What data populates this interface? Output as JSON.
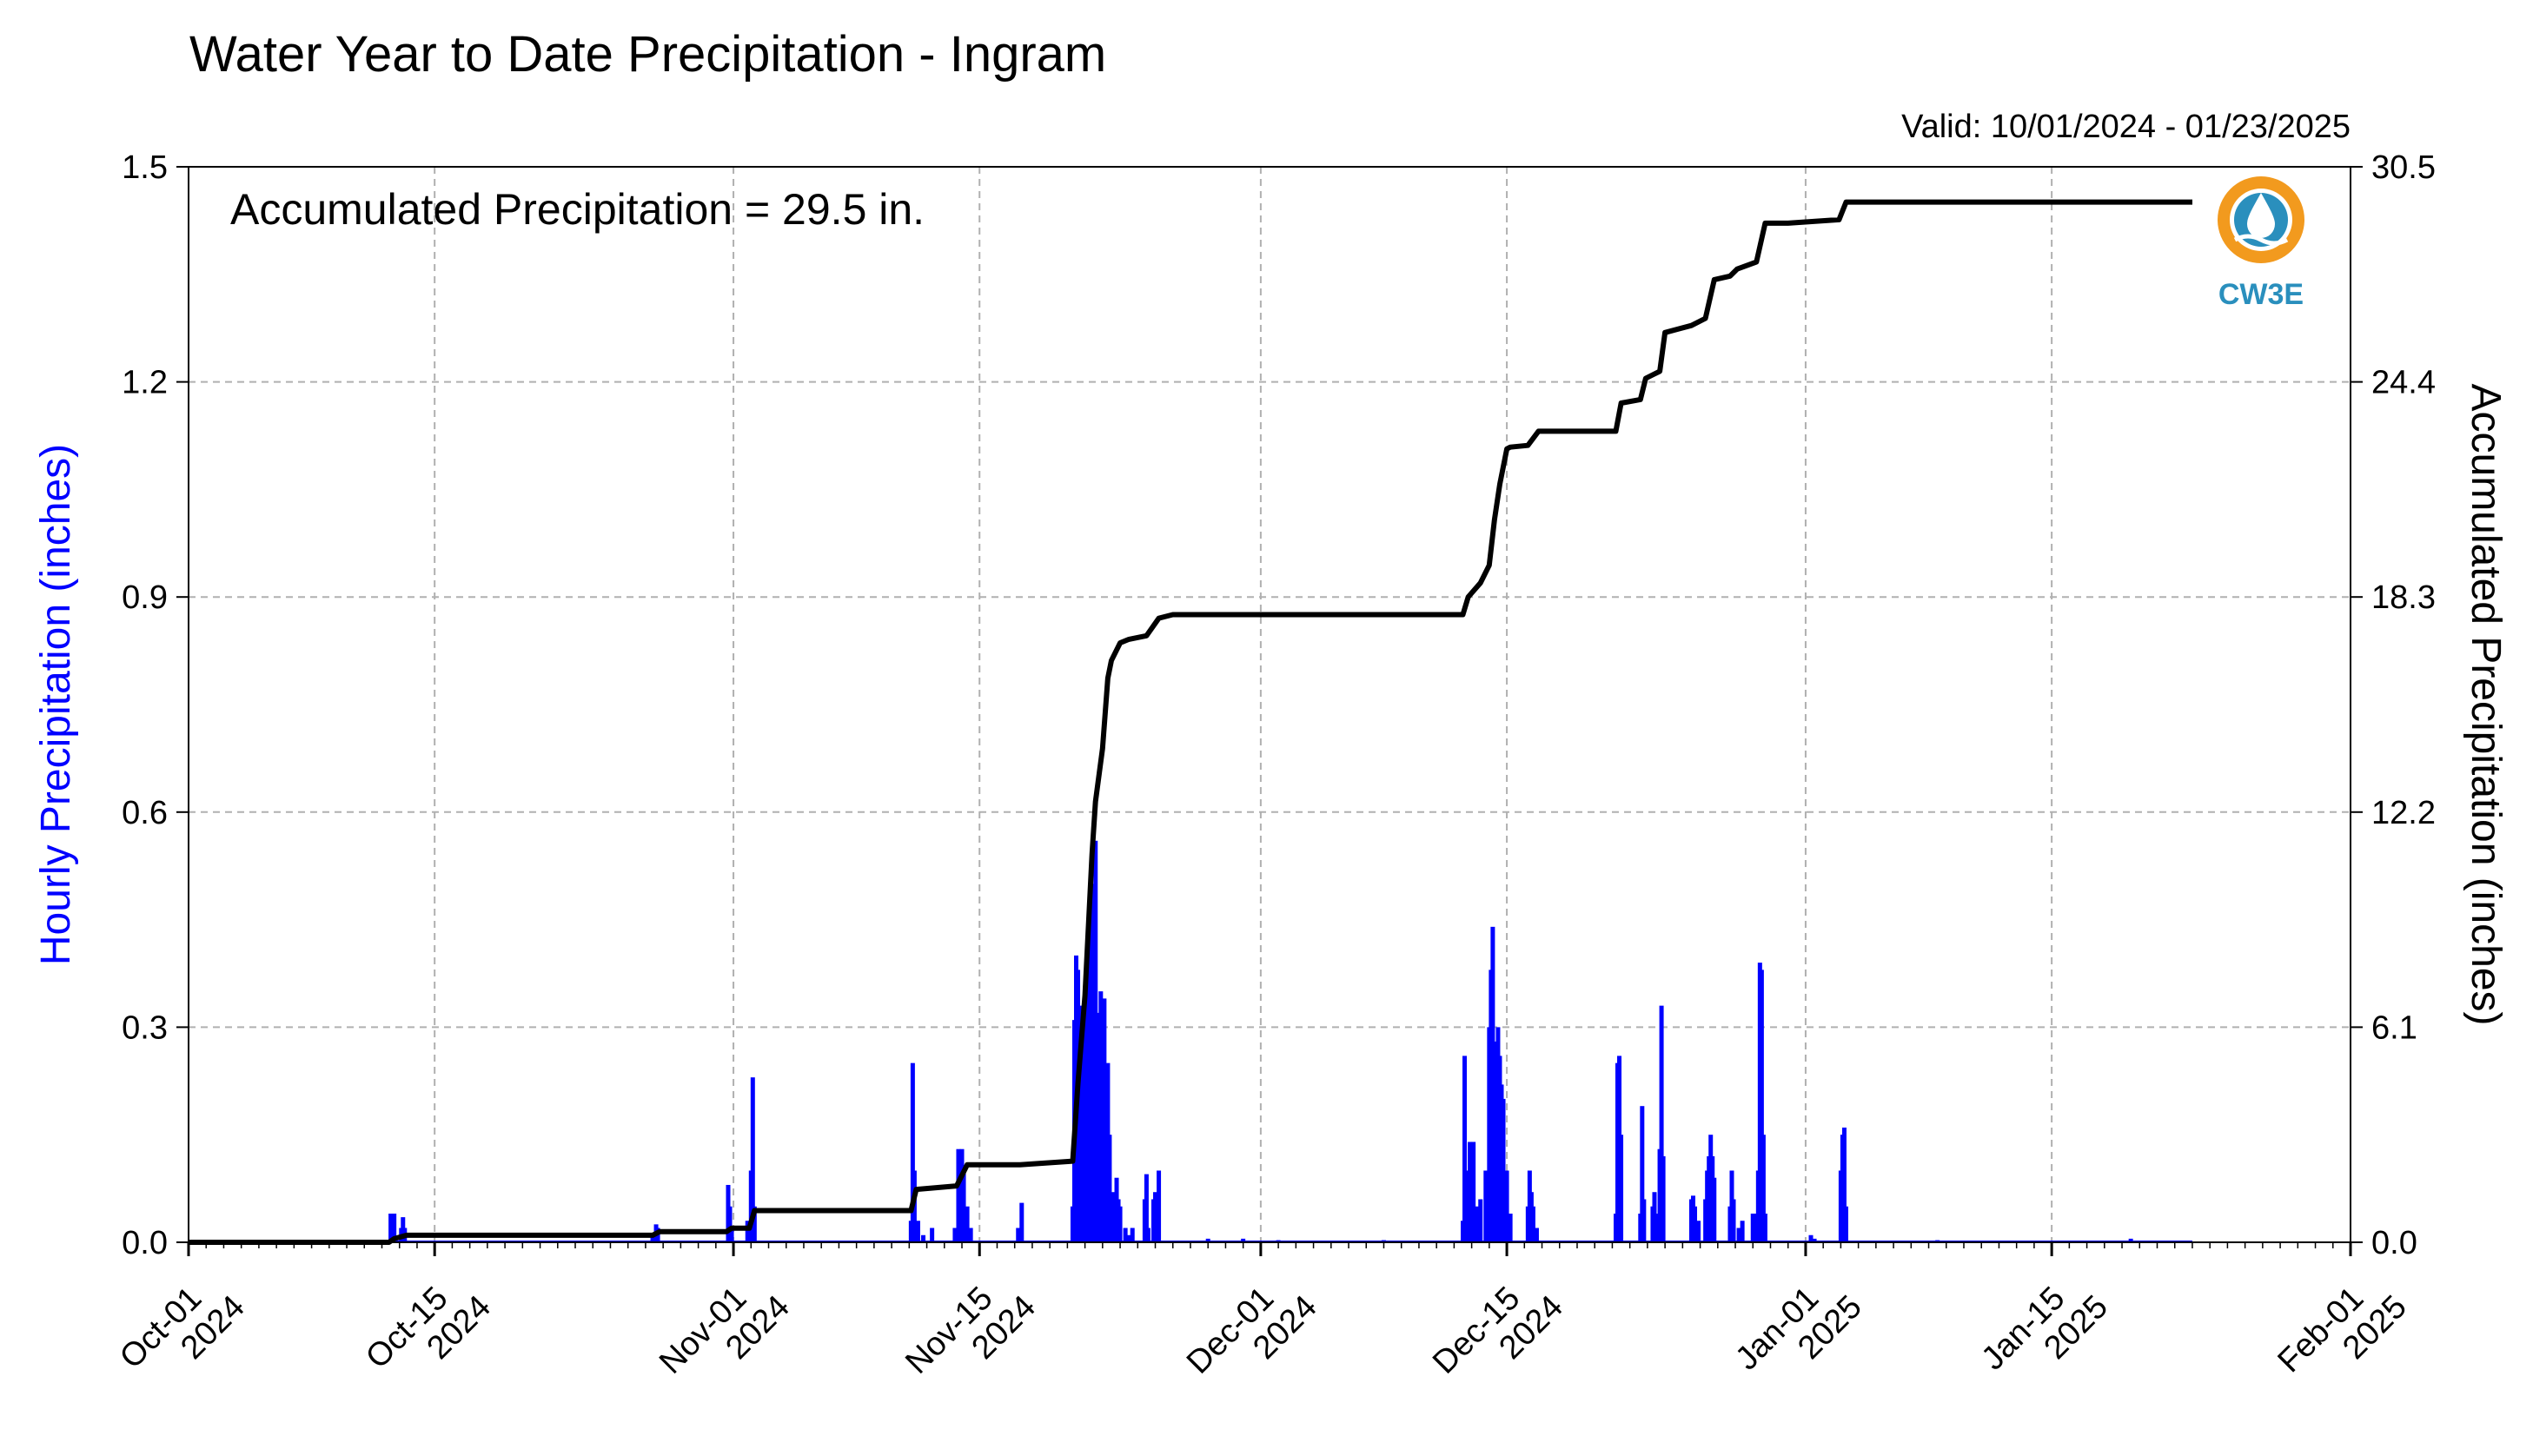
{
  "chart_data": {
    "type": "bar+line",
    "title": "Water Year to Date Precipitation - Ingram",
    "valid_range": "Valid: 10/01/2024 - 01/23/2025",
    "annotation": "Accumulated Precipitation = 29.5 in.",
    "logo_text": "CW3E",
    "ylabel_left": "Hourly Precipitation (inches)",
    "ylabel_right": "Accumulated Precipitation (inches)",
    "ylim_left": [
      0,
      1.5
    ],
    "ylim_right": [
      0,
      30.5
    ],
    "yticks_left": [
      "0.0",
      "0.3",
      "0.6",
      "0.9",
      "1.2",
      "1.5"
    ],
    "yticks_right": [
      "0.0",
      "6.1",
      "12.2",
      "18.3",
      "24.4",
      "30.5"
    ],
    "xlim_days": [
      0,
      123
    ],
    "x_ticks": [
      {
        "day": 0,
        "line1": "Oct-01",
        "line2": "2024"
      },
      {
        "day": 14,
        "line1": "Oct-15",
        "line2": "2024"
      },
      {
        "day": 31,
        "line1": "Nov-01",
        "line2": "2024"
      },
      {
        "day": 45,
        "line1": "Nov-15",
        "line2": "2024"
      },
      {
        "day": 61,
        "line1": "Dec-01",
        "line2": "2024"
      },
      {
        "day": 75,
        "line1": "Dec-15",
        "line2": "2024"
      },
      {
        "day": 92,
        "line1": "Jan-01",
        "line2": "2025"
      },
      {
        "day": 106,
        "line1": "Jan-15",
        "line2": "2025"
      },
      {
        "day": 123,
        "line1": "Feb-01",
        "line2": "2025"
      }
    ],
    "grid": true,
    "colors": {
      "hourly": "#0000ff",
      "accumulated": "#000000",
      "grid": "#b0b0b0",
      "logo": "#2a8fbd",
      "logo_sun": "#f29a1e"
    },
    "series": [
      {
        "name": "Hourly Precipitation",
        "type": "bar",
        "points": [
          [
            11.5,
            0.04
          ],
          [
            11.6,
            0.03
          ],
          [
            11.7,
            0.04
          ],
          [
            12.1,
            0.02
          ],
          [
            12.2,
            0.035
          ],
          [
            12.3,
            0.02
          ],
          [
            26.4,
            0.01
          ],
          [
            26.6,
            0.025
          ],
          [
            26.7,
            0.02
          ],
          [
            30.7,
            0.08
          ],
          [
            30.8,
            0.05
          ],
          [
            30.9,
            0.02
          ],
          [
            31.8,
            0.03
          ],
          [
            32.0,
            0.1
          ],
          [
            32.1,
            0.23
          ],
          [
            32.2,
            0.05
          ],
          [
            41.1,
            0.03
          ],
          [
            41.2,
            0.25
          ],
          [
            41.3,
            0.1
          ],
          [
            41.5,
            0.03
          ],
          [
            41.8,
            0.01
          ],
          [
            42.3,
            0.02
          ],
          [
            43.6,
            0.02
          ],
          [
            43.8,
            0.13
          ],
          [
            43.9,
            0.12
          ],
          [
            44.0,
            0.13
          ],
          [
            44.1,
            0.1
          ],
          [
            44.3,
            0.05
          ],
          [
            44.5,
            0.02
          ],
          [
            47.2,
            0.02
          ],
          [
            47.4,
            0.055
          ],
          [
            50.3,
            0.05
          ],
          [
            50.4,
            0.31
          ],
          [
            50.45,
            0.18
          ],
          [
            50.5,
            0.4
          ],
          [
            50.6,
            0.38
          ],
          [
            50.7,
            0.25
          ],
          [
            50.8,
            0.33
          ],
          [
            50.9,
            0.3
          ],
          [
            51.0,
            0.35
          ],
          [
            51.05,
            0.2
          ],
          [
            51.1,
            0.4
          ],
          [
            51.2,
            0.38
          ],
          [
            51.3,
            0.45
          ],
          [
            51.35,
            0.38
          ],
          [
            51.4,
            0.48
          ],
          [
            51.5,
            0.5
          ],
          [
            51.6,
            0.56
          ],
          [
            51.7,
            0.32
          ],
          [
            51.8,
            0.2
          ],
          [
            51.9,
            0.35
          ],
          [
            52.0,
            0.3
          ],
          [
            52.1,
            0.34
          ],
          [
            52.2,
            0.2
          ],
          [
            52.3,
            0.25
          ],
          [
            52.4,
            0.15
          ],
          [
            52.5,
            0.06
          ],
          [
            52.6,
            0.07
          ],
          [
            52.7,
            0.06
          ],
          [
            52.8,
            0.09
          ],
          [
            52.9,
            0.06
          ],
          [
            53.0,
            0.05
          ],
          [
            53.3,
            0.02
          ],
          [
            53.5,
            0.01
          ],
          [
            53.7,
            0.02
          ],
          [
            54.4,
            0.06
          ],
          [
            54.5,
            0.095
          ],
          [
            54.6,
            0.02
          ],
          [
            54.9,
            0.06
          ],
          [
            55.0,
            0.07
          ],
          [
            55.2,
            0.1
          ],
          [
            58.0,
            0.005
          ],
          [
            60.0,
            0.005
          ],
          [
            62.0,
            0.003
          ],
          [
            68.0,
            0.003
          ],
          [
            72.5,
            0.03
          ],
          [
            72.6,
            0.26
          ],
          [
            72.7,
            0.1
          ],
          [
            72.8,
            0.05
          ],
          [
            72.9,
            0.14
          ],
          [
            73.0,
            0.08
          ],
          [
            73.1,
            0.14
          ],
          [
            73.3,
            0.05
          ],
          [
            73.5,
            0.06
          ],
          [
            73.8,
            0.1
          ],
          [
            74.0,
            0.3
          ],
          [
            74.1,
            0.38
          ],
          [
            74.2,
            0.44
          ],
          [
            74.3,
            0.25
          ],
          [
            74.4,
            0.28
          ],
          [
            74.5,
            0.3
          ],
          [
            74.6,
            0.26
          ],
          [
            74.7,
            0.22
          ],
          [
            74.8,
            0.2
          ],
          [
            75.0,
            0.1
          ],
          [
            75.2,
            0.04
          ],
          [
            76.2,
            0.05
          ],
          [
            76.3,
            0.1
          ],
          [
            76.4,
            0.07
          ],
          [
            76.5,
            0.05
          ],
          [
            76.7,
            0.02
          ],
          [
            81.2,
            0.04
          ],
          [
            81.3,
            0.25
          ],
          [
            81.4,
            0.26
          ],
          [
            81.5,
            0.15
          ],
          [
            82.6,
            0.04
          ],
          [
            82.7,
            0.19
          ],
          [
            82.8,
            0.06
          ],
          [
            83.3,
            0.05
          ],
          [
            83.4,
            0.07
          ],
          [
            83.5,
            0.04
          ],
          [
            83.7,
            0.13
          ],
          [
            83.8,
            0.33
          ],
          [
            83.9,
            0.12
          ],
          [
            85.5,
            0.06
          ],
          [
            85.6,
            0.065
          ],
          [
            85.7,
            0.05
          ],
          [
            85.9,
            0.03
          ],
          [
            86.3,
            0.06
          ],
          [
            86.4,
            0.1
          ],
          [
            86.5,
            0.12
          ],
          [
            86.6,
            0.15
          ],
          [
            86.7,
            0.12
          ],
          [
            86.8,
            0.09
          ],
          [
            87.7,
            0.05
          ],
          [
            87.8,
            0.1
          ],
          [
            87.9,
            0.06
          ],
          [
            88.2,
            0.02
          ],
          [
            88.4,
            0.03
          ],
          [
            89.0,
            0.04
          ],
          [
            89.1,
            0.04
          ],
          [
            89.3,
            0.1
          ],
          [
            89.4,
            0.39
          ],
          [
            89.5,
            0.38
          ],
          [
            89.6,
            0.15
          ],
          [
            89.7,
            0.04
          ],
          [
            92.3,
            0.01
          ],
          [
            92.5,
            0.005
          ],
          [
            94.0,
            0.1
          ],
          [
            94.1,
            0.15
          ],
          [
            94.2,
            0.16
          ],
          [
            94.3,
            0.05
          ],
          [
            99.5,
            0.003
          ],
          [
            110.5,
            0.005
          ],
          [
            112.0,
            0.002
          ]
        ]
      },
      {
        "name": "Accumulated Precipitation",
        "type": "line",
        "points": [
          [
            0,
            0
          ],
          [
            11.4,
            0
          ],
          [
            11.7,
            0.1
          ],
          [
            12.4,
            0.2
          ],
          [
            26.4,
            0.2
          ],
          [
            26.8,
            0.3
          ],
          [
            30.6,
            0.3
          ],
          [
            30.9,
            0.4
          ],
          [
            31.9,
            0.4
          ],
          [
            32.2,
            0.9
          ],
          [
            41.1,
            0.9
          ],
          [
            41.4,
            1.5
          ],
          [
            43.7,
            1.6
          ],
          [
            44.3,
            2.2
          ],
          [
            47.3,
            2.2
          ],
          [
            50.3,
            2.3
          ],
          [
            50.6,
            4.5
          ],
          [
            51.0,
            7.0
          ],
          [
            51.4,
            11.0
          ],
          [
            51.6,
            12.5
          ],
          [
            52.0,
            14.0
          ],
          [
            52.3,
            16.0
          ],
          [
            52.5,
            16.5
          ],
          [
            53.0,
            17.0
          ],
          [
            53.5,
            17.1
          ],
          [
            54.5,
            17.2
          ],
          [
            55.2,
            17.7
          ],
          [
            56.0,
            17.8
          ],
          [
            72.5,
            17.8
          ],
          [
            72.8,
            18.3
          ],
          [
            73.5,
            18.7
          ],
          [
            74.0,
            19.2
          ],
          [
            74.3,
            20.5
          ],
          [
            74.6,
            21.5
          ],
          [
            75.0,
            22.5
          ],
          [
            75.2,
            22.55
          ],
          [
            76.2,
            22.6
          ],
          [
            76.8,
            23.0
          ],
          [
            81.2,
            23.0
          ],
          [
            81.5,
            23.8
          ],
          [
            82.6,
            23.9
          ],
          [
            82.9,
            24.5
          ],
          [
            83.7,
            24.7
          ],
          [
            84.0,
            25.8
          ],
          [
            85.5,
            26.0
          ],
          [
            86.3,
            26.2
          ],
          [
            86.8,
            27.3
          ],
          [
            87.7,
            27.4
          ],
          [
            88.1,
            27.6
          ],
          [
            89.2,
            27.8
          ],
          [
            89.7,
            28.9
          ],
          [
            91.0,
            28.9
          ],
          [
            93.9,
            29.0
          ],
          [
            94.3,
            29.5
          ],
          [
            114.0,
            29.5
          ]
        ]
      }
    ]
  }
}
